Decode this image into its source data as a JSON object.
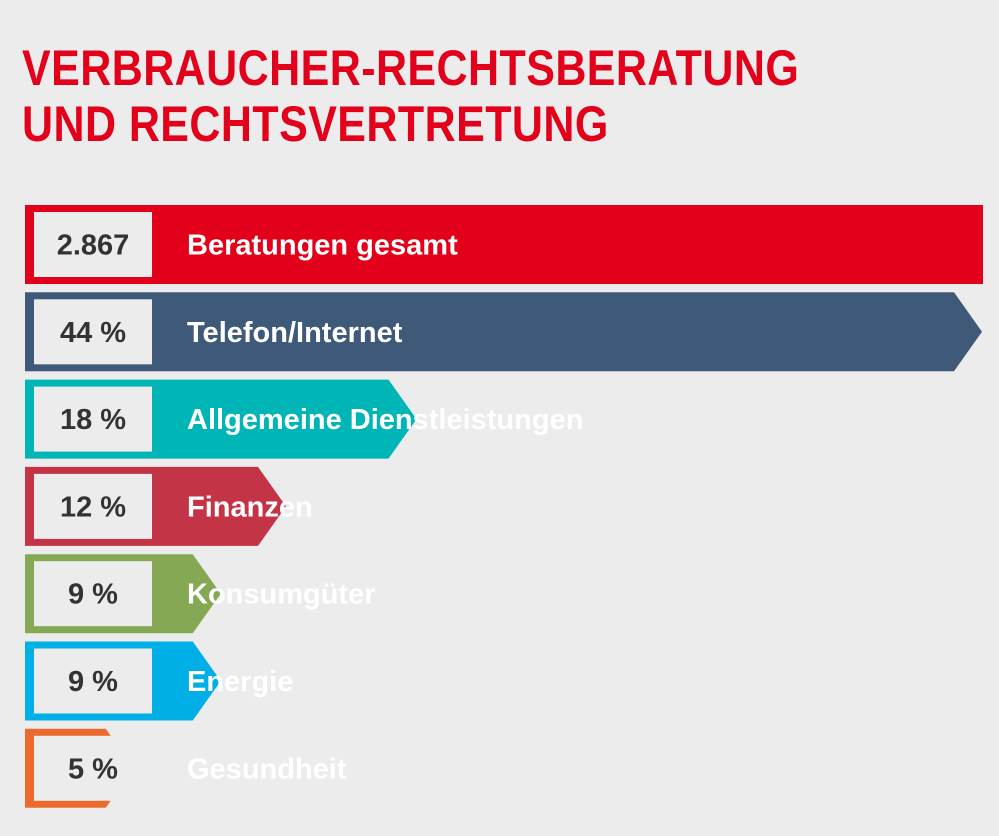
{
  "title_line1": "VERBRAUCHER-RECHTSBERATUNG",
  "title_line2": "UND RECHTSVERTRETUNG",
  "chart_data": {
    "type": "bar",
    "orientation": "horizontal",
    "total": {
      "value_label": "2.867",
      "label": "Beratungen gesamt",
      "value": 2867,
      "color": "#e2001a"
    },
    "categories": [
      "Telefon/Internet",
      "Allgemeine Dienstleistungen",
      "Finanzen",
      "Konsumgüter",
      "Energie",
      "Gesundheit"
    ],
    "value_labels": [
      "44 %",
      "18 %",
      "12 %",
      "9 %",
      "9 %",
      "5 %"
    ],
    "values": [
      44,
      18,
      12,
      9,
      9,
      5
    ],
    "colors": [
      "#3f5a78",
      "#00b5b5",
      "#c33447",
      "#84a854",
      "#00afe6",
      "#ea6b2d"
    ],
    "unit": "%"
  }
}
